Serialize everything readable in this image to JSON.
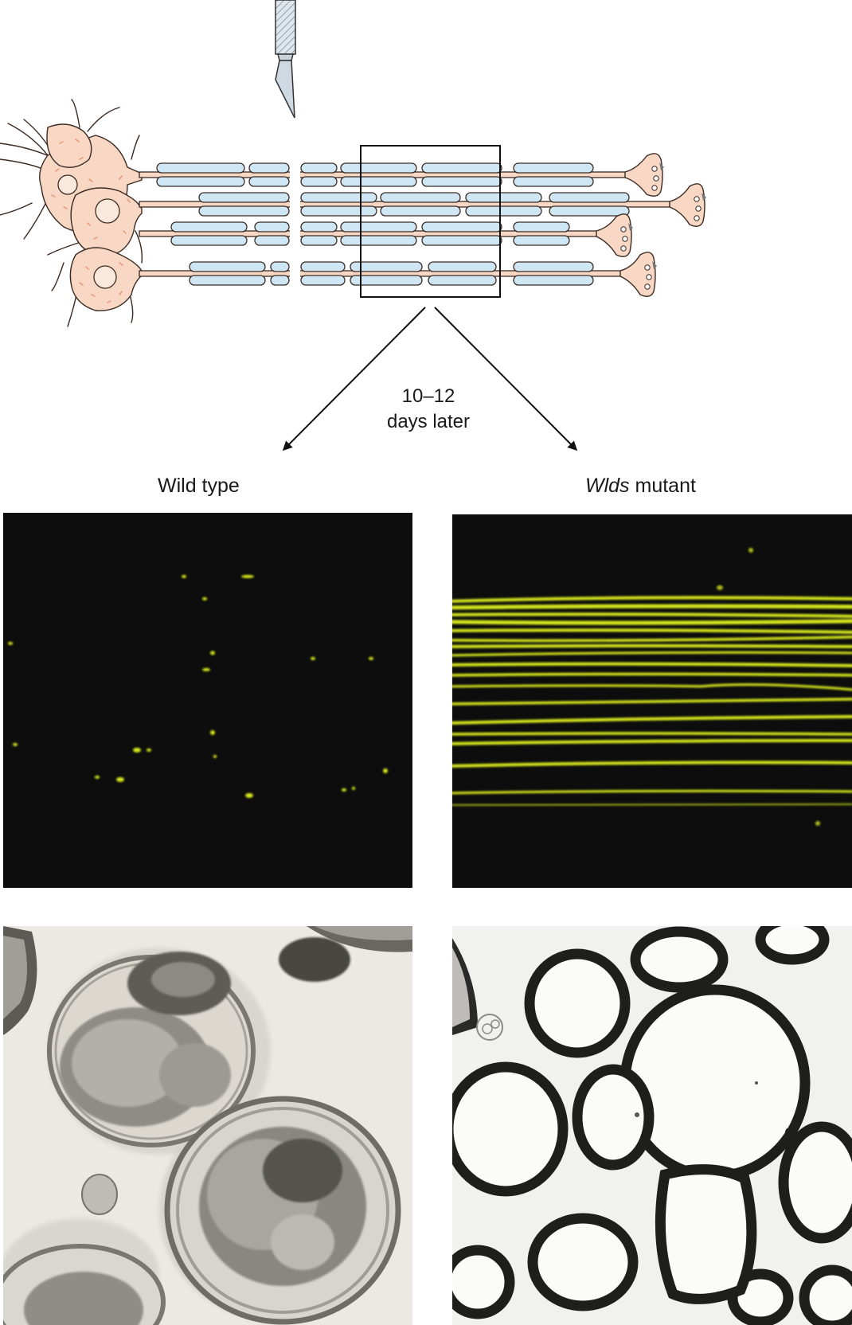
{
  "timing_label": {
    "line1": "10–12",
    "line2": "days later"
  },
  "conditions": {
    "left": {
      "label": "Wild type"
    },
    "right": {
      "label_italic": "Wlds",
      "label_rest": " mutant"
    }
  },
  "colors": {
    "neuron_body": "#f8d8c4",
    "neuron_dots": "#e8957a",
    "myelin": "#cfe6f4",
    "fluorescence": "#d8e81e",
    "panel_dark": "#0c0d0c",
    "em_background": "#f1f1ef"
  },
  "icons": [
    "scalpel-icon",
    "arrow-left-icon",
    "arrow-right-icon"
  ]
}
